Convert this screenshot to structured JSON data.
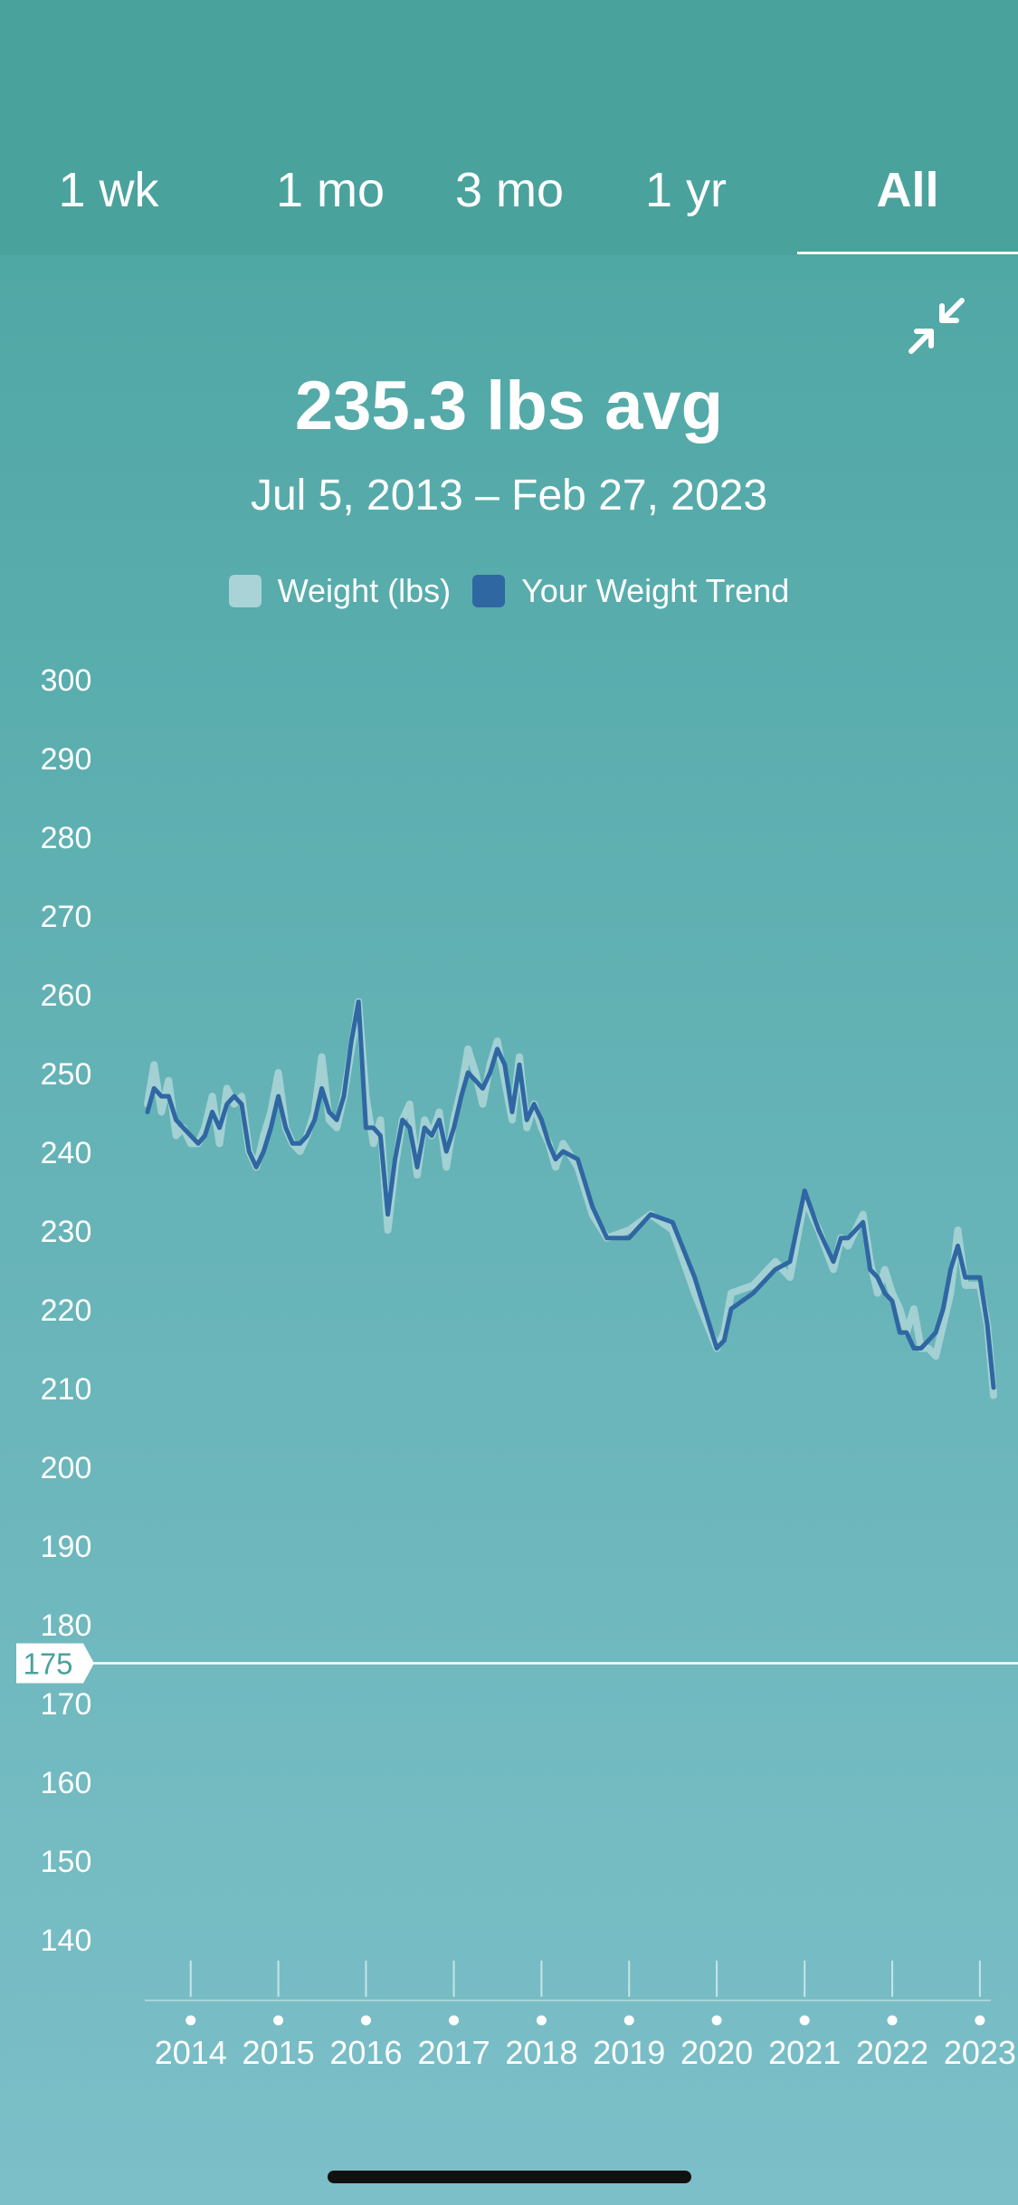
{
  "tabs": [
    {
      "label": "1 wk",
      "active": false
    },
    {
      "label": "1 mo",
      "active": false
    },
    {
      "label": "3 mo",
      "active": false
    },
    {
      "label": "1 yr",
      "active": false
    },
    {
      "label": "All",
      "active": true
    }
  ],
  "collapse_icon": "collapse-arrows-icon",
  "summary": {
    "average": "235.3 lbs avg",
    "range": "Jul 5, 2013 – Feb 27, 2023"
  },
  "colors": {
    "weight": "#a9d3d6",
    "trend": "#2f67a3",
    "goal_line": "#ffffff",
    "accent": "#4aa29d"
  },
  "chart_data": {
    "type": "line",
    "legend": [
      {
        "name": "Weight (lbs)",
        "color": "#a9d3d6"
      },
      {
        "name": "Your Weight Trend",
        "color": "#2f67a3"
      }
    ],
    "ylim": [
      135,
      300
    ],
    "yticks": [
      300,
      290,
      280,
      270,
      260,
      250,
      240,
      230,
      220,
      210,
      200,
      190,
      180,
      170,
      160,
      150,
      140
    ],
    "xticks": [
      "2014",
      "2015",
      "2016",
      "2017",
      "2018",
      "2019",
      "2020",
      "2021",
      "2022",
      "2023"
    ],
    "xlim": [
      "2013-07-05",
      "2023-02-27"
    ],
    "goal": {
      "value": 175,
      "label": "175"
    },
    "series": [
      {
        "name": "Weight (lbs)",
        "points": [
          [
            "2013-07-05",
            246
          ],
          [
            "2013-08-01",
            251
          ],
          [
            "2013-09-01",
            245
          ],
          [
            "2013-10-01",
            249
          ],
          [
            "2013-11-01",
            242
          ],
          [
            "2013-12-01",
            243
          ],
          [
            "2014-01-01",
            241
          ],
          [
            "2014-02-01",
            241
          ],
          [
            "2014-03-01",
            243
          ],
          [
            "2014-04-01",
            247
          ],
          [
            "2014-05-01",
            241
          ],
          [
            "2014-06-01",
            248
          ],
          [
            "2014-07-01",
            246
          ],
          [
            "2014-08-01",
            247
          ],
          [
            "2014-09-01",
            240
          ],
          [
            "2014-10-01",
            238
          ],
          [
            "2014-11-01",
            242
          ],
          [
            "2014-12-01",
            245
          ],
          [
            "2015-01-01",
            250
          ],
          [
            "2015-02-01",
            243
          ],
          [
            "2015-03-01",
            241
          ],
          [
            "2015-04-01",
            240
          ],
          [
            "2015-05-01",
            242
          ],
          [
            "2015-06-01",
            245
          ],
          [
            "2015-07-01",
            252
          ],
          [
            "2015-08-01",
            244
          ],
          [
            "2015-09-01",
            243
          ],
          [
            "2015-10-01",
            247
          ],
          [
            "2015-11-01",
            253
          ],
          [
            "2015-12-01",
            259
          ],
          [
            "2016-01-01",
            247
          ],
          [
            "2016-02-01",
            241
          ],
          [
            "2016-03-01",
            244
          ],
          [
            "2016-04-01",
            230
          ],
          [
            "2016-05-01",
            238
          ],
          [
            "2016-06-01",
            244
          ],
          [
            "2016-07-01",
            246
          ],
          [
            "2016-08-01",
            237
          ],
          [
            "2016-09-01",
            244
          ],
          [
            "2016-10-01",
            242
          ],
          [
            "2016-11-01",
            245
          ],
          [
            "2016-12-01",
            238
          ],
          [
            "2017-01-01",
            244
          ],
          [
            "2017-02-01",
            248
          ],
          [
            "2017-03-01",
            253
          ],
          [
            "2017-04-01",
            250
          ],
          [
            "2017-05-01",
            246
          ],
          [
            "2017-06-01",
            251
          ],
          [
            "2017-07-01",
            254
          ],
          [
            "2017-08-01",
            249
          ],
          [
            "2017-09-01",
            244
          ],
          [
            "2017-10-01",
            252
          ],
          [
            "2017-11-01",
            243
          ],
          [
            "2017-12-01",
            246
          ],
          [
            "2018-01-01",
            243
          ],
          [
            "2018-02-01",
            241
          ],
          [
            "2018-03-01",
            238
          ],
          [
            "2018-04-01",
            241
          ],
          [
            "2018-06-01",
            238
          ],
          [
            "2018-08-01",
            232
          ],
          [
            "2018-10-01",
            229
          ],
          [
            "2019-01-01",
            230
          ],
          [
            "2019-04-01",
            232
          ],
          [
            "2019-07-01",
            230
          ],
          [
            "2019-10-01",
            222
          ],
          [
            "2020-01-01",
            215
          ],
          [
            "2020-02-01",
            217
          ],
          [
            "2020-03-01",
            222
          ],
          [
            "2020-06-01",
            223
          ],
          [
            "2020-09-01",
            226
          ],
          [
            "2020-11-01",
            224
          ],
          [
            "2021-01-01",
            234
          ],
          [
            "2021-03-01",
            230
          ],
          [
            "2021-05-01",
            225
          ],
          [
            "2021-06-01",
            229
          ],
          [
            "2021-07-01",
            228
          ],
          [
            "2021-09-01",
            232
          ],
          [
            "2021-10-01",
            226
          ],
          [
            "2021-11-01",
            222
          ],
          [
            "2021-12-01",
            225
          ],
          [
            "2022-01-01",
            222
          ],
          [
            "2022-02-01",
            220
          ],
          [
            "2022-03-01",
            217
          ],
          [
            "2022-04-01",
            220
          ],
          [
            "2022-05-01",
            215
          ],
          [
            "2022-06-01",
            215
          ],
          [
            "2022-07-01",
            214
          ],
          [
            "2022-08-01",
            218
          ],
          [
            "2022-09-01",
            222
          ],
          [
            "2022-10-01",
            230
          ],
          [
            "2022-11-01",
            223
          ],
          [
            "2022-12-01",
            223
          ],
          [
            "2023-01-01",
            223
          ],
          [
            "2023-02-01",
            218
          ],
          [
            "2023-02-27",
            209
          ]
        ]
      },
      {
        "name": "Your Weight Trend",
        "points": [
          [
            "2013-07-05",
            245
          ],
          [
            "2013-08-01",
            248
          ],
          [
            "2013-09-01",
            247
          ],
          [
            "2013-10-01",
            247
          ],
          [
            "2013-11-01",
            244
          ],
          [
            "2013-12-01",
            243
          ],
          [
            "2014-01-01",
            242
          ],
          [
            "2014-02-01",
            241
          ],
          [
            "2014-03-01",
            242
          ],
          [
            "2014-04-01",
            245
          ],
          [
            "2014-05-01",
            243
          ],
          [
            "2014-06-01",
            246
          ],
          [
            "2014-07-01",
            247
          ],
          [
            "2014-08-01",
            246
          ],
          [
            "2014-09-01",
            240
          ],
          [
            "2014-10-01",
            238
          ],
          [
            "2014-11-01",
            240
          ],
          [
            "2014-12-01",
            243
          ],
          [
            "2015-01-01",
            247
          ],
          [
            "2015-02-01",
            243
          ],
          [
            "2015-03-01",
            241
          ],
          [
            "2015-04-01",
            241
          ],
          [
            "2015-05-01",
            242
          ],
          [
            "2015-06-01",
            244
          ],
          [
            "2015-07-01",
            248
          ],
          [
            "2015-08-01",
            245
          ],
          [
            "2015-09-01",
            244
          ],
          [
            "2015-10-01",
            247
          ],
          [
            "2015-11-01",
            254
          ],
          [
            "2015-12-01",
            259
          ],
          [
            "2016-01-01",
            243
          ],
          [
            "2016-02-01",
            243
          ],
          [
            "2016-03-01",
            242
          ],
          [
            "2016-04-01",
            232
          ],
          [
            "2016-05-01",
            239
          ],
          [
            "2016-06-01",
            244
          ],
          [
            "2016-07-01",
            243
          ],
          [
            "2016-08-01",
            238
          ],
          [
            "2016-09-01",
            243
          ],
          [
            "2016-10-01",
            242
          ],
          [
            "2016-11-01",
            244
          ],
          [
            "2016-12-01",
            240
          ],
          [
            "2017-01-01",
            243
          ],
          [
            "2017-02-01",
            247
          ],
          [
            "2017-03-01",
            250
          ],
          [
            "2017-04-01",
            249
          ],
          [
            "2017-05-01",
            248
          ],
          [
            "2017-06-01",
            250
          ],
          [
            "2017-07-01",
            253
          ],
          [
            "2017-08-01",
            251
          ],
          [
            "2017-09-01",
            245
          ],
          [
            "2017-10-01",
            251
          ],
          [
            "2017-11-01",
            244
          ],
          [
            "2017-12-01",
            246
          ],
          [
            "2018-01-01",
            244
          ],
          [
            "2018-02-01",
            241
          ],
          [
            "2018-03-01",
            239
          ],
          [
            "2018-04-01",
            240
          ],
          [
            "2018-06-01",
            239
          ],
          [
            "2018-08-01",
            233
          ],
          [
            "2018-10-01",
            229
          ],
          [
            "2019-01-01",
            229
          ],
          [
            "2019-04-01",
            232
          ],
          [
            "2019-07-01",
            231
          ],
          [
            "2019-10-01",
            224
          ],
          [
            "2020-01-01",
            215
          ],
          [
            "2020-02-01",
            216
          ],
          [
            "2020-03-01",
            220
          ],
          [
            "2020-06-01",
            222
          ],
          [
            "2020-09-01",
            225
          ],
          [
            "2020-11-01",
            226
          ],
          [
            "2021-01-01",
            235
          ],
          [
            "2021-03-01",
            230
          ],
          [
            "2021-05-01",
            226
          ],
          [
            "2021-06-01",
            229
          ],
          [
            "2021-07-01",
            229
          ],
          [
            "2021-09-01",
            231
          ],
          [
            "2021-10-01",
            225
          ],
          [
            "2021-11-01",
            224
          ],
          [
            "2021-12-01",
            222
          ],
          [
            "2022-01-01",
            221
          ],
          [
            "2022-02-01",
            217
          ],
          [
            "2022-03-01",
            217
          ],
          [
            "2022-04-01",
            215
          ],
          [
            "2022-05-01",
            215
          ],
          [
            "2022-06-01",
            216
          ],
          [
            "2022-07-01",
            217
          ],
          [
            "2022-08-01",
            220
          ],
          [
            "2022-09-01",
            225
          ],
          [
            "2022-10-01",
            228
          ],
          [
            "2022-11-01",
            224
          ],
          [
            "2022-12-01",
            224
          ],
          [
            "2023-01-01",
            224
          ],
          [
            "2023-02-01",
            218
          ],
          [
            "2023-02-27",
            210
          ]
        ]
      }
    ]
  }
}
